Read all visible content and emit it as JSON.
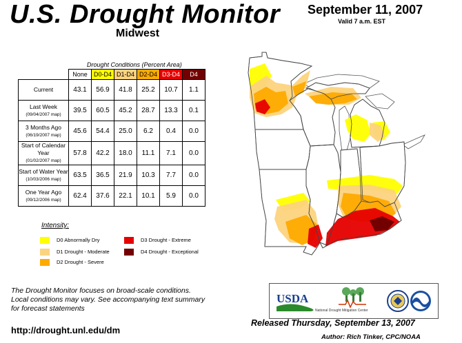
{
  "header": {
    "title": "U.S. Drought Monitor",
    "region": "Midwest",
    "date": "September 11, 2007",
    "valid": "Valid 7 a.m. EST"
  },
  "table": {
    "caption": "Drought Conditions (Percent Area)",
    "columns": [
      "None",
      "D0-D4",
      "D1-D4",
      "D2-D4",
      "D3-D4",
      "D4"
    ],
    "column_colors": [
      "#ffffff",
      "#ffff00",
      "#fcd37f",
      "#ffaa00",
      "#e60000",
      "#730000"
    ],
    "rows": [
      {
        "label": "Current",
        "sub": "",
        "values": [
          "43.1",
          "56.9",
          "41.8",
          "25.2",
          "10.7",
          "1.1"
        ]
      },
      {
        "label": "Last Week",
        "sub": "(09/04/2007 map)",
        "values": [
          "39.5",
          "60.5",
          "45.2",
          "28.7",
          "13.3",
          "0.1"
        ]
      },
      {
        "label": "3 Months Ago",
        "sub": "(06/19/2007 map)",
        "values": [
          "45.6",
          "54.4",
          "25.0",
          "6.2",
          "0.4",
          "0.0"
        ]
      },
      {
        "label": "Start of Calendar Year",
        "sub": "(01/02/2007 map)",
        "values": [
          "57.8",
          "42.2",
          "18.0",
          "11.1",
          "7.1",
          "0.0"
        ]
      },
      {
        "label": "Start of Water Year",
        "sub": "(10/03/2006 map)",
        "values": [
          "63.5",
          "36.5",
          "21.9",
          "10.3",
          "7.7",
          "0.0"
        ]
      },
      {
        "label": "One Year Ago",
        "sub": "(09/12/2006 map)",
        "values": [
          "62.4",
          "37.6",
          "22.1",
          "10.1",
          "5.9",
          "0.0"
        ]
      }
    ]
  },
  "legend": {
    "title": "Intensity:",
    "items": [
      {
        "label": "D0 Abnormally Dry",
        "color": "#ffff00"
      },
      {
        "label": "D1 Drought - Moderate",
        "color": "#fcd37f"
      },
      {
        "label": "D2 Drought - Severe",
        "color": "#ffaa00"
      },
      {
        "label": "D3 Drought - Extreme",
        "color": "#e60000"
      },
      {
        "label": "D4 Drought - Exceptional",
        "color": "#730000"
      }
    ]
  },
  "footer": {
    "note_lines": [
      "The Drought Monitor focuses on broad-scale conditions.",
      "Local conditions may vary. See accompanying text summary",
      "for forecast statements"
    ],
    "url": "http://drought.unl.edu/dm",
    "released": "Released Thursday, September 13, 2007",
    "author": "Author: Rich Tinker, CPC/NOAA"
  },
  "logos": {
    "usda": "USDA",
    "ndmc": "National Drought Mitigation Center"
  }
}
